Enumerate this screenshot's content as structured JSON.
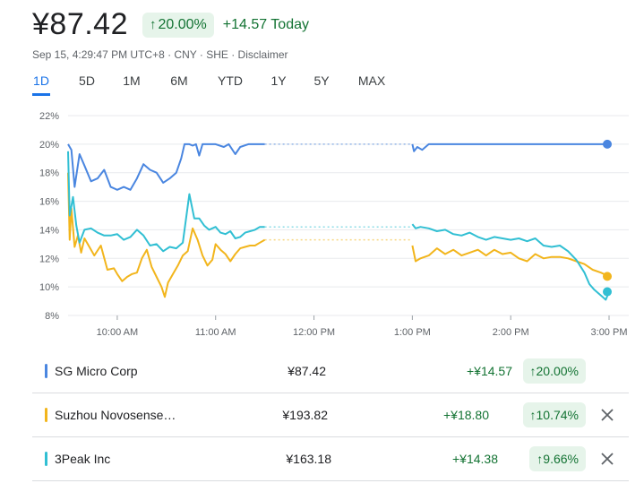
{
  "quote": {
    "price": "¥87.42",
    "change_pct": "20.00%",
    "change_today": "+14.57 Today",
    "info": "Sep 15, 4:29:47 PM UTC+8 · CNY · SHE · Disclaimer"
  },
  "tabs": [
    {
      "label": "1D",
      "active": true
    },
    {
      "label": "5D"
    },
    {
      "label": "1M"
    },
    {
      "label": "6M"
    },
    {
      "label": "YTD"
    },
    {
      "label": "1Y"
    },
    {
      "label": "5Y"
    },
    {
      "label": "MAX"
    }
  ],
  "colors": {
    "sg": "#4a86e0",
    "novosense": "#f2b51c",
    "threepeak": "#31bfd3",
    "gain": "#137333",
    "gain_bg": "#e6f4ea",
    "grid": "#e8eaed"
  },
  "chart_data": {
    "type": "line",
    "x_unit": "time of day",
    "y_unit": "percent change",
    "ylim": [
      8,
      22
    ],
    "y_ticks": [
      "22%",
      "20%",
      "18%",
      "16%",
      "14%",
      "12%",
      "10%",
      "8%"
    ],
    "y_tick_values": [
      22,
      20,
      18,
      16,
      14,
      12,
      10,
      8
    ],
    "x_ticks": [
      "10:00 AM",
      "11:00 AM",
      "12:00 PM",
      "1:00 PM",
      "2:00 PM",
      "3:00 PM"
    ],
    "x_tick_values": [
      "10:00",
      "11:00",
      "12:00",
      "13:00",
      "14:00",
      "15:00"
    ],
    "x_range": [
      "09:30",
      "15:00"
    ],
    "lunch_break": [
      "11:30",
      "13:00"
    ],
    "series": [
      {
        "name": "SG Micro Corp",
        "color_key": "sg",
        "points": [
          [
            "09:30",
            20.0
          ],
          [
            "09:32",
            19.6
          ],
          [
            "09:34",
            17.0
          ],
          [
            "09:37",
            19.3
          ],
          [
            "09:40",
            18.5
          ],
          [
            "09:44",
            17.4
          ],
          [
            "09:48",
            17.6
          ],
          [
            "09:52",
            18.2
          ],
          [
            "09:56",
            17.0
          ],
          [
            "10:00",
            16.8
          ],
          [
            "10:04",
            17.0
          ],
          [
            "10:08",
            16.8
          ],
          [
            "10:12",
            17.6
          ],
          [
            "10:16",
            18.6
          ],
          [
            "10:20",
            18.2
          ],
          [
            "10:24",
            18.0
          ],
          [
            "10:28",
            17.3
          ],
          [
            "10:32",
            17.6
          ],
          [
            "10:36",
            18.0
          ],
          [
            "10:39",
            19.0
          ],
          [
            "10:41",
            20.0
          ],
          [
            "10:44",
            20.0
          ],
          [
            "10:46",
            19.9
          ],
          [
            "10:48",
            20.0
          ],
          [
            "10:50",
            19.2
          ],
          [
            "10:52",
            20.0
          ],
          [
            "11:00",
            20.0
          ],
          [
            "11:05",
            19.8
          ],
          [
            "11:08",
            20.0
          ],
          [
            "11:12",
            19.3
          ],
          [
            "11:15",
            19.8
          ],
          [
            "11:20",
            20.0
          ],
          [
            "11:30",
            20.0
          ],
          [
            "13:00",
            20.0
          ],
          [
            "13:01",
            19.5
          ],
          [
            "13:03",
            19.8
          ],
          [
            "13:06",
            19.6
          ],
          [
            "13:10",
            20.0
          ],
          [
            "14:00",
            20.0
          ],
          [
            "15:00",
            20.0
          ]
        ]
      },
      {
        "name": "Suzhou Novosense",
        "color_key": "novosense",
        "points": [
          [
            "09:30",
            18.0
          ],
          [
            "09:31",
            13.3
          ],
          [
            "09:32",
            15.5
          ],
          [
            "09:34",
            12.8
          ],
          [
            "09:36",
            13.6
          ],
          [
            "09:38",
            12.4
          ],
          [
            "09:40",
            13.4
          ],
          [
            "09:42",
            13.0
          ],
          [
            "09:46",
            12.2
          ],
          [
            "09:50",
            12.9
          ],
          [
            "09:54",
            11.2
          ],
          [
            "09:58",
            11.3
          ],
          [
            "10:00",
            10.9
          ],
          [
            "10:03",
            10.4
          ],
          [
            "10:06",
            10.7
          ],
          [
            "10:09",
            10.9
          ],
          [
            "10:12",
            11.0
          ],
          [
            "10:15",
            12.0
          ],
          [
            "10:18",
            12.6
          ],
          [
            "10:21",
            11.4
          ],
          [
            "10:24",
            10.7
          ],
          [
            "10:27",
            10.0
          ],
          [
            "10:29",
            9.3
          ],
          [
            "10:31",
            10.3
          ],
          [
            "10:34",
            10.9
          ],
          [
            "10:37",
            11.5
          ],
          [
            "10:40",
            12.2
          ],
          [
            "10:43",
            12.5
          ],
          [
            "10:46",
            14.1
          ],
          [
            "10:49",
            13.3
          ],
          [
            "10:52",
            12.2
          ],
          [
            "10:55",
            11.5
          ],
          [
            "10:58",
            11.9
          ],
          [
            "11:00",
            13.0
          ],
          [
            "11:03",
            12.6
          ],
          [
            "11:06",
            12.3
          ],
          [
            "11:09",
            11.8
          ],
          [
            "11:12",
            12.3
          ],
          [
            "11:15",
            12.7
          ],
          [
            "11:18",
            12.8
          ],
          [
            "11:21",
            12.9
          ],
          [
            "11:24",
            12.9
          ],
          [
            "11:27",
            13.1
          ],
          [
            "11:30",
            13.3
          ],
          [
            "13:00",
            12.9
          ],
          [
            "13:02",
            11.8
          ],
          [
            "13:05",
            12.0
          ],
          [
            "13:10",
            12.2
          ],
          [
            "13:15",
            12.7
          ],
          [
            "13:20",
            12.3
          ],
          [
            "13:25",
            12.6
          ],
          [
            "13:30",
            12.2
          ],
          [
            "13:35",
            12.4
          ],
          [
            "13:40",
            12.6
          ],
          [
            "13:45",
            12.2
          ],
          [
            "13:50",
            12.6
          ],
          [
            "13:55",
            12.3
          ],
          [
            "14:00",
            12.4
          ],
          [
            "14:05",
            12.0
          ],
          [
            "14:10",
            11.8
          ],
          [
            "14:15",
            12.3
          ],
          [
            "14:20",
            12.0
          ],
          [
            "14:25",
            12.1
          ],
          [
            "14:30",
            12.1
          ],
          [
            "14:35",
            12.0
          ],
          [
            "14:40",
            11.8
          ],
          [
            "14:45",
            11.6
          ],
          [
            "14:50",
            11.2
          ],
          [
            "14:55",
            11.0
          ],
          [
            "15:00",
            10.74
          ]
        ]
      },
      {
        "name": "3Peak Inc",
        "color_key": "threepeak",
        "points": [
          [
            "09:30",
            19.5
          ],
          [
            "09:31",
            15.0
          ],
          [
            "09:33",
            16.3
          ],
          [
            "09:35",
            14.3
          ],
          [
            "09:37",
            13.1
          ],
          [
            "09:40",
            14.0
          ],
          [
            "09:44",
            14.1
          ],
          [
            "09:48",
            13.8
          ],
          [
            "09:52",
            13.6
          ],
          [
            "09:56",
            13.6
          ],
          [
            "10:00",
            13.7
          ],
          [
            "10:04",
            13.3
          ],
          [
            "10:08",
            13.5
          ],
          [
            "10:12",
            14.0
          ],
          [
            "10:16",
            13.6
          ],
          [
            "10:20",
            12.9
          ],
          [
            "10:24",
            13.0
          ],
          [
            "10:28",
            12.5
          ],
          [
            "10:32",
            12.8
          ],
          [
            "10:36",
            12.7
          ],
          [
            "10:40",
            13.1
          ],
          [
            "10:44",
            16.5
          ],
          [
            "10:47",
            14.8
          ],
          [
            "10:50",
            14.8
          ],
          [
            "10:53",
            14.3
          ],
          [
            "10:56",
            14.0
          ],
          [
            "11:00",
            14.2
          ],
          [
            "11:03",
            13.8
          ],
          [
            "11:06",
            13.7
          ],
          [
            "11:09",
            13.9
          ],
          [
            "11:12",
            13.4
          ],
          [
            "11:15",
            13.5
          ],
          [
            "11:18",
            13.8
          ],
          [
            "11:21",
            13.9
          ],
          [
            "11:24",
            14.0
          ],
          [
            "11:27",
            14.2
          ],
          [
            "11:30",
            14.2
          ],
          [
            "13:00",
            14.4
          ],
          [
            "13:02",
            14.1
          ],
          [
            "13:05",
            14.2
          ],
          [
            "13:10",
            14.1
          ],
          [
            "13:15",
            13.9
          ],
          [
            "13:20",
            14.0
          ],
          [
            "13:25",
            13.7
          ],
          [
            "13:30",
            13.6
          ],
          [
            "13:35",
            13.8
          ],
          [
            "13:40",
            13.5
          ],
          [
            "13:45",
            13.3
          ],
          [
            "13:50",
            13.5
          ],
          [
            "13:55",
            13.4
          ],
          [
            "14:00",
            13.3
          ],
          [
            "14:05",
            13.4
          ],
          [
            "14:10",
            13.2
          ],
          [
            "14:15",
            13.4
          ],
          [
            "14:20",
            12.9
          ],
          [
            "14:25",
            12.8
          ],
          [
            "14:30",
            12.9
          ],
          [
            "14:35",
            12.5
          ],
          [
            "14:40",
            11.9
          ],
          [
            "14:45",
            11.0
          ],
          [
            "14:48",
            10.2
          ],
          [
            "14:51",
            9.8
          ],
          [
            "14:53",
            9.6
          ],
          [
            "14:56",
            9.3
          ],
          [
            "14:58",
            9.1
          ],
          [
            "15:00",
            9.66
          ]
        ]
      }
    ]
  },
  "comparison": [
    {
      "name": "SG Micro Corp",
      "price": "¥87.42",
      "change": "+¥14.57",
      "pct": "20.00%",
      "color_key": "sg",
      "removable": false
    },
    {
      "name": "Suzhou Novosense…",
      "price": "¥193.82",
      "change": "+¥18.80",
      "pct": "10.74%",
      "color_key": "novosense",
      "removable": true
    },
    {
      "name": "3Peak Inc",
      "price": "¥163.18",
      "change": "+¥14.38",
      "pct": "9.66%",
      "color_key": "threepeak",
      "removable": true
    }
  ]
}
